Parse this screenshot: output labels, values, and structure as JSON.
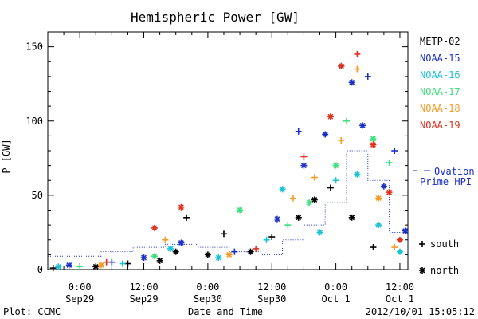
{
  "chart_data": {
    "type": "scatter",
    "title": "Hemispheric Power [GW]",
    "ylabel": "P [GW]",
    "xlabel": "Date and Time",
    "ylim": [
      0,
      160
    ],
    "xlim": [
      "2012-09-28 18:00",
      "2012-10-01 13:30"
    ],
    "y_ticks": [
      0,
      50,
      100,
      150
    ],
    "x_ticks": [
      {
        "t": "2012-09-29 00:00",
        "line1": "0:00",
        "line2": "Sep29"
      },
      {
        "t": "2012-09-29 12:00",
        "line1": "12:00",
        "line2": "Sep29"
      },
      {
        "t": "2012-09-30 00:00",
        "line1": "0:00",
        "line2": "Sep30"
      },
      {
        "t": "2012-09-30 12:00",
        "line1": "12:00",
        "line2": "Sep30"
      },
      {
        "t": "2012-10-01 00:00",
        "line1": "0:00",
        "line2": "Oct 1"
      },
      {
        "t": "2012-10-01 12:00",
        "line1": "12:00",
        "line2": "Oct 1"
      }
    ],
    "series": [
      {
        "name": "METP-02",
        "color": "#000000",
        "points": [
          {
            "t": "2012-09-28 19:00",
            "y": 1,
            "m": "+"
          },
          {
            "t": "2012-09-29 03:00",
            "y": 2,
            "m": "*"
          },
          {
            "t": "2012-09-29 09:00",
            "y": 4,
            "m": "+"
          },
          {
            "t": "2012-09-29 15:00",
            "y": 6,
            "m": "*"
          },
          {
            "t": "2012-09-29 18:00",
            "y": 12,
            "m": "*"
          },
          {
            "t": "2012-09-29 20:00",
            "y": 35,
            "m": "+"
          },
          {
            "t": "2012-09-30 00:00",
            "y": 10,
            "m": "*"
          },
          {
            "t": "2012-09-30 03:00",
            "y": 24,
            "m": "+"
          },
          {
            "t": "2012-09-30 08:00",
            "y": 12,
            "m": "*"
          },
          {
            "t": "2012-09-30 12:00",
            "y": 22,
            "m": "+"
          },
          {
            "t": "2012-09-30 17:00",
            "y": 35,
            "m": "*"
          },
          {
            "t": "2012-09-30 20:00",
            "y": 47,
            "m": "*"
          },
          {
            "t": "2012-09-30 23:00",
            "y": 55,
            "m": "+"
          },
          {
            "t": "2012-10-01 03:00",
            "y": 35,
            "m": "*"
          },
          {
            "t": "2012-10-01 07:00",
            "y": 15,
            "m": "+"
          }
        ]
      },
      {
        "name": "NOAA-15",
        "color": "#1a2fc4",
        "points": [
          {
            "t": "2012-09-28 22:00",
            "y": 3,
            "m": "*"
          },
          {
            "t": "2012-09-29 06:00",
            "y": 5,
            "m": "+"
          },
          {
            "t": "2012-09-29 12:00",
            "y": 8,
            "m": "*"
          },
          {
            "t": "2012-09-29 19:00",
            "y": 18,
            "m": "*"
          },
          {
            "t": "2012-09-30 05:00",
            "y": 12,
            "m": "+"
          },
          {
            "t": "2012-09-30 13:00",
            "y": 34,
            "m": "*"
          },
          {
            "t": "2012-09-30 17:00",
            "y": 93,
            "m": "+"
          },
          {
            "t": "2012-09-30 18:00",
            "y": 70,
            "m": "*"
          },
          {
            "t": "2012-09-30 22:00",
            "y": 91,
            "m": "*"
          },
          {
            "t": "2012-10-01 01:00",
            "y": 137,
            "m": "*"
          },
          {
            "t": "2012-10-01 03:00",
            "y": 126,
            "m": "*"
          },
          {
            "t": "2012-10-01 05:00",
            "y": 97,
            "m": "*"
          },
          {
            "t": "2012-10-01 06:00",
            "y": 130,
            "m": "+"
          },
          {
            "t": "2012-10-01 09:00",
            "y": 56,
            "m": "*"
          },
          {
            "t": "2012-10-01 11:00",
            "y": 80,
            "m": "+"
          },
          {
            "t": "2012-10-01 13:00",
            "y": 26,
            "m": "*"
          }
        ]
      },
      {
        "name": "NOAA-16",
        "color": "#19c3d6",
        "points": [
          {
            "t": "2012-09-28 20:00",
            "y": 2,
            "m": "*"
          },
          {
            "t": "2012-09-29 08:00",
            "y": 4,
            "m": "+"
          },
          {
            "t": "2012-09-29 17:00",
            "y": 14,
            "m": "*"
          },
          {
            "t": "2012-09-30 02:00",
            "y": 8,
            "m": "*"
          },
          {
            "t": "2012-09-30 11:00",
            "y": 20,
            "m": "+"
          },
          {
            "t": "2012-09-30 14:00",
            "y": 54,
            "m": "*"
          },
          {
            "t": "2012-09-30 21:00",
            "y": 25,
            "m": "*"
          },
          {
            "t": "2012-10-01 00:00",
            "y": 60,
            "m": "+"
          },
          {
            "t": "2012-10-01 04:00",
            "y": 64,
            "m": "*"
          },
          {
            "t": "2012-10-01 08:00",
            "y": 30,
            "m": "*"
          },
          {
            "t": "2012-10-01 12:00",
            "y": 12,
            "m": "*"
          }
        ]
      },
      {
        "name": "NOAA-17",
        "color": "#3ee07a",
        "points": [
          {
            "t": "2012-09-29 00:00",
            "y": 2,
            "m": "+"
          },
          {
            "t": "2012-09-29 14:00",
            "y": 9,
            "m": "*"
          },
          {
            "t": "2012-09-30 06:00",
            "y": 40,
            "m": "*"
          },
          {
            "t": "2012-09-30 15:00",
            "y": 30,
            "m": "+"
          },
          {
            "t": "2012-09-30 19:00",
            "y": 45,
            "m": "*"
          },
          {
            "t": "2012-10-01 00:00",
            "y": 70,
            "m": "*"
          },
          {
            "t": "2012-10-01 02:00",
            "y": 100,
            "m": "+"
          },
          {
            "t": "2012-10-01 07:00",
            "y": 88,
            "m": "*"
          },
          {
            "t": "2012-10-01 10:00",
            "y": 72,
            "m": "+"
          }
        ]
      },
      {
        "name": "NOAA-18",
        "color": "#f59a23",
        "points": [
          {
            "t": "2012-09-29 04:00",
            "y": 3,
            "m": "*"
          },
          {
            "t": "2012-09-29 16:00",
            "y": 20,
            "m": "+"
          },
          {
            "t": "2012-09-30 04:00",
            "y": 10,
            "m": "*"
          },
          {
            "t": "2012-09-30 16:00",
            "y": 48,
            "m": "+"
          },
          {
            "t": "2012-09-30 20:00",
            "y": 62,
            "m": "+"
          },
          {
            "t": "2012-10-01 01:00",
            "y": 87,
            "m": "+"
          },
          {
            "t": "2012-10-01 04:00",
            "y": 135,
            "m": "+"
          },
          {
            "t": "2012-10-01 08:00",
            "y": 48,
            "m": "*"
          },
          {
            "t": "2012-10-01 11:00",
            "y": 15,
            "m": "+"
          }
        ]
      },
      {
        "name": "NOAA-19",
        "color": "#e0301e",
        "points": [
          {
            "t": "2012-09-29 05:00",
            "y": 5,
            "m": "+"
          },
          {
            "t": "2012-09-29 14:00",
            "y": 28,
            "m": "*"
          },
          {
            "t": "2012-09-29 19:00",
            "y": 42,
            "m": "*"
          },
          {
            "t": "2012-09-30 09:00",
            "y": 14,
            "m": "+"
          },
          {
            "t": "2012-09-30 18:00",
            "y": 76,
            "m": "+"
          },
          {
            "t": "2012-09-30 23:00",
            "y": 103,
            "m": "*"
          },
          {
            "t": "2012-10-01 01:00",
            "y": 137,
            "m": "*"
          },
          {
            "t": "2012-10-01 04:00",
            "y": 145,
            "m": "+"
          },
          {
            "t": "2012-10-01 07:00",
            "y": 84,
            "m": "*"
          },
          {
            "t": "2012-10-01 10:00",
            "y": 52,
            "m": "*"
          },
          {
            "t": "2012-10-01 12:00",
            "y": 20,
            "m": "*"
          }
        ]
      }
    ],
    "hpi_ovation": {
      "name": "Ovation Prime HPI",
      "color": "#1a2fc4",
      "times": [
        "2012-09-28 18:00",
        "2012-09-29 04:00",
        "2012-09-29 10:00",
        "2012-09-29 16:00",
        "2012-09-29 22:00",
        "2012-09-30 04:00",
        "2012-09-30 10:00",
        "2012-09-30 14:00",
        "2012-09-30 18:00",
        "2012-09-30 22:00",
        "2012-10-01 02:00",
        "2012-10-01 06:00",
        "2012-10-01 10:00",
        "2012-10-01 13:30"
      ],
      "values": [
        9,
        12,
        15,
        17,
        15,
        12,
        10,
        20,
        30,
        45,
        80,
        60,
        25,
        10
      ]
    },
    "legend": {
      "placement": "right",
      "hpi_line1": "Ovation",
      "hpi_line2": "Prime HPI",
      "south_label": "south",
      "north_label": "north"
    }
  },
  "footer": {
    "left": "Plot: CCMC",
    "right": "2012/10/01  15:05:12"
  }
}
